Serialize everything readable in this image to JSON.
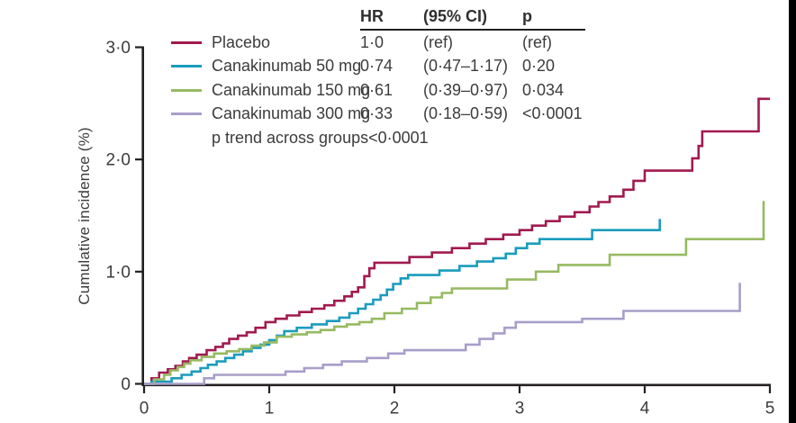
{
  "figure": {
    "y_axis_label": "Cumulative incidence (%)"
  },
  "legend": {
    "items": [
      {
        "label": "Placebo",
        "color": "#a11a4f"
      },
      {
        "label": "Canakinumab 50 mg",
        "color": "#1a9cbd"
      },
      {
        "label": "Canakinumab 150 mg",
        "color": "#96ba62"
      },
      {
        "label": "Canakinumab 300 mg",
        "color": "#a89ec9"
      }
    ],
    "p_trend": "p trend across groups<0·0001"
  },
  "stats_table": {
    "headers": [
      "HR",
      "(95% CI)",
      "p"
    ],
    "rows": [
      [
        "1·0",
        "(ref)",
        "(ref)"
      ],
      [
        "0·74",
        "(0·47–1·17)",
        "0·20"
      ],
      [
        "0·61",
        "(0·39–0·97)",
        "0·034"
      ],
      [
        "0·33",
        "(0·18–0·59)",
        "<0·0001"
      ]
    ]
  },
  "chart_data": {
    "type": "line",
    "subtype": "step-cumulative-incidence",
    "title": "",
    "xlabel": "",
    "ylabel": "Cumulative incidence (%)",
    "xlim": [
      0,
      5
    ],
    "ylim": [
      0,
      3
    ],
    "grid": false,
    "legend_position": "top-left-inside",
    "x_ticks": [
      {
        "v": 0,
        "label": "0"
      },
      {
        "v": 1,
        "label": "1"
      },
      {
        "v": 2,
        "label": "2"
      },
      {
        "v": 3,
        "label": "3"
      },
      {
        "v": 4,
        "label": "4"
      },
      {
        "v": 5,
        "label": "5"
      }
    ],
    "y_ticks": [
      {
        "v": 0,
        "label": "0"
      },
      {
        "v": 1,
        "label": "1·0"
      },
      {
        "v": 2,
        "label": "2·0"
      },
      {
        "v": 3,
        "label": "3·0"
      }
    ],
    "axis_color": "#231f20",
    "series": [
      {
        "name": "Placebo",
        "color": "#a11a4f",
        "hr": "1·0",
        "ci": "(ref)",
        "p": "(ref)",
        "end": 5.0,
        "points": [
          [
            0,
            0
          ],
          [
            0.06,
            0.05
          ],
          [
            0.12,
            0.1
          ],
          [
            0.19,
            0.13
          ],
          [
            0.25,
            0.16
          ],
          [
            0.31,
            0.2
          ],
          [
            0.36,
            0.23
          ],
          [
            0.42,
            0.26
          ],
          [
            0.5,
            0.3
          ],
          [
            0.57,
            0.33
          ],
          [
            0.63,
            0.36
          ],
          [
            0.68,
            0.4
          ],
          [
            0.75,
            0.43
          ],
          [
            0.82,
            0.46
          ],
          [
            0.89,
            0.5
          ],
          [
            0.97,
            0.55
          ],
          [
            1.05,
            0.58
          ],
          [
            1.14,
            0.61
          ],
          [
            1.24,
            0.64
          ],
          [
            1.34,
            0.67
          ],
          [
            1.44,
            0.7
          ],
          [
            1.52,
            0.74
          ],
          [
            1.6,
            0.78
          ],
          [
            1.66,
            0.82
          ],
          [
            1.71,
            0.86
          ],
          [
            1.76,
            0.96
          ],
          [
            1.8,
            1.03
          ],
          [
            1.84,
            1.08
          ],
          [
            2.12,
            1.13
          ],
          [
            2.3,
            1.17
          ],
          [
            2.46,
            1.21
          ],
          [
            2.6,
            1.25
          ],
          [
            2.73,
            1.29
          ],
          [
            2.87,
            1.33
          ],
          [
            3.0,
            1.37
          ],
          [
            3.1,
            1.41
          ],
          [
            3.21,
            1.45
          ],
          [
            3.32,
            1.49
          ],
          [
            3.44,
            1.53
          ],
          [
            3.56,
            1.58
          ],
          [
            3.63,
            1.62
          ],
          [
            3.72,
            1.67
          ],
          [
            3.83,
            1.73
          ],
          [
            3.91,
            1.81
          ],
          [
            4.0,
            1.9
          ],
          [
            4.38,
            2.01
          ],
          [
            4.43,
            2.12
          ],
          [
            4.46,
            2.25
          ],
          [
            4.91,
            2.54
          ]
        ]
      },
      {
        "name": "Canakinumab 50 mg",
        "color": "#1a9cbd",
        "hr": "0·74",
        "ci": "(0·47–1·17)",
        "p": "0·20",
        "end": 4.12,
        "points": [
          [
            0,
            0
          ],
          [
            0.06,
            0.02
          ],
          [
            0.22,
            0.05
          ],
          [
            0.3,
            0.08
          ],
          [
            0.38,
            0.11
          ],
          [
            0.45,
            0.14
          ],
          [
            0.51,
            0.17
          ],
          [
            0.58,
            0.2
          ],
          [
            0.65,
            0.23
          ],
          [
            0.72,
            0.26
          ],
          [
            0.79,
            0.29
          ],
          [
            0.86,
            0.32
          ],
          [
            0.93,
            0.35
          ],
          [
            1.0,
            0.39
          ],
          [
            1.06,
            0.43
          ],
          [
            1.12,
            0.47
          ],
          [
            1.22,
            0.5
          ],
          [
            1.34,
            0.53
          ],
          [
            1.46,
            0.56
          ],
          [
            1.56,
            0.59
          ],
          [
            1.64,
            0.63
          ],
          [
            1.71,
            0.67
          ],
          [
            1.77,
            0.71
          ],
          [
            1.83,
            0.75
          ],
          [
            1.89,
            0.79
          ],
          [
            1.94,
            0.84
          ],
          [
            1.99,
            0.89
          ],
          [
            2.05,
            0.94
          ],
          [
            2.11,
            0.97
          ],
          [
            2.36,
            1.01
          ],
          [
            2.52,
            1.05
          ],
          [
            2.66,
            1.09
          ],
          [
            2.79,
            1.12
          ],
          [
            2.89,
            1.16
          ],
          [
            2.97,
            1.21
          ],
          [
            3.06,
            1.25
          ],
          [
            3.16,
            1.29
          ],
          [
            3.58,
            1.37
          ],
          [
            4.12,
            1.47
          ]
        ]
      },
      {
        "name": "Canakinumab 150 mg",
        "color": "#96ba62",
        "hr": "0·61",
        "ci": "(0·39–0·97)",
        "p": "0·034",
        "end": 4.95,
        "points": [
          [
            0,
            0
          ],
          [
            0.08,
            0.04
          ],
          [
            0.16,
            0.08
          ],
          [
            0.21,
            0.12
          ],
          [
            0.27,
            0.15
          ],
          [
            0.32,
            0.18
          ],
          [
            0.37,
            0.21
          ],
          [
            0.46,
            0.24
          ],
          [
            0.56,
            0.27
          ],
          [
            0.66,
            0.29
          ],
          [
            0.76,
            0.31
          ],
          [
            0.86,
            0.34
          ],
          [
            0.96,
            0.37
          ],
          [
            1.06,
            0.42
          ],
          [
            1.18,
            0.44
          ],
          [
            1.3,
            0.46
          ],
          [
            1.41,
            0.48
          ],
          [
            1.52,
            0.51
          ],
          [
            1.62,
            0.53
          ],
          [
            1.72,
            0.55
          ],
          [
            1.82,
            0.58
          ],
          [
            1.92,
            0.63
          ],
          [
            2.06,
            0.67
          ],
          [
            2.18,
            0.72
          ],
          [
            2.29,
            0.77
          ],
          [
            2.38,
            0.81
          ],
          [
            2.46,
            0.85
          ],
          [
            2.9,
            0.93
          ],
          [
            3.13,
            1.0
          ],
          [
            3.31,
            1.06
          ],
          [
            3.72,
            1.15
          ],
          [
            4.33,
            1.29
          ],
          [
            4.95,
            1.63
          ]
        ]
      },
      {
        "name": "Canakinumab 300 mg",
        "color": "#a89ec9",
        "hr": "0·33",
        "ci": "(0·18–0·59)",
        "p": "<0·0001",
        "end": 4.76,
        "points": [
          [
            0,
            0
          ],
          [
            0.48,
            0.05
          ],
          [
            0.56,
            0.08
          ],
          [
            1.13,
            0.11
          ],
          [
            1.28,
            0.14
          ],
          [
            1.43,
            0.17
          ],
          [
            1.58,
            0.2
          ],
          [
            1.78,
            0.23
          ],
          [
            1.95,
            0.27
          ],
          [
            2.08,
            0.3
          ],
          [
            2.57,
            0.35
          ],
          [
            2.68,
            0.4
          ],
          [
            2.79,
            0.45
          ],
          [
            2.88,
            0.5
          ],
          [
            2.97,
            0.55
          ],
          [
            3.5,
            0.58
          ],
          [
            3.83,
            0.65
          ],
          [
            4.76,
            0.9
          ]
        ]
      }
    ]
  }
}
